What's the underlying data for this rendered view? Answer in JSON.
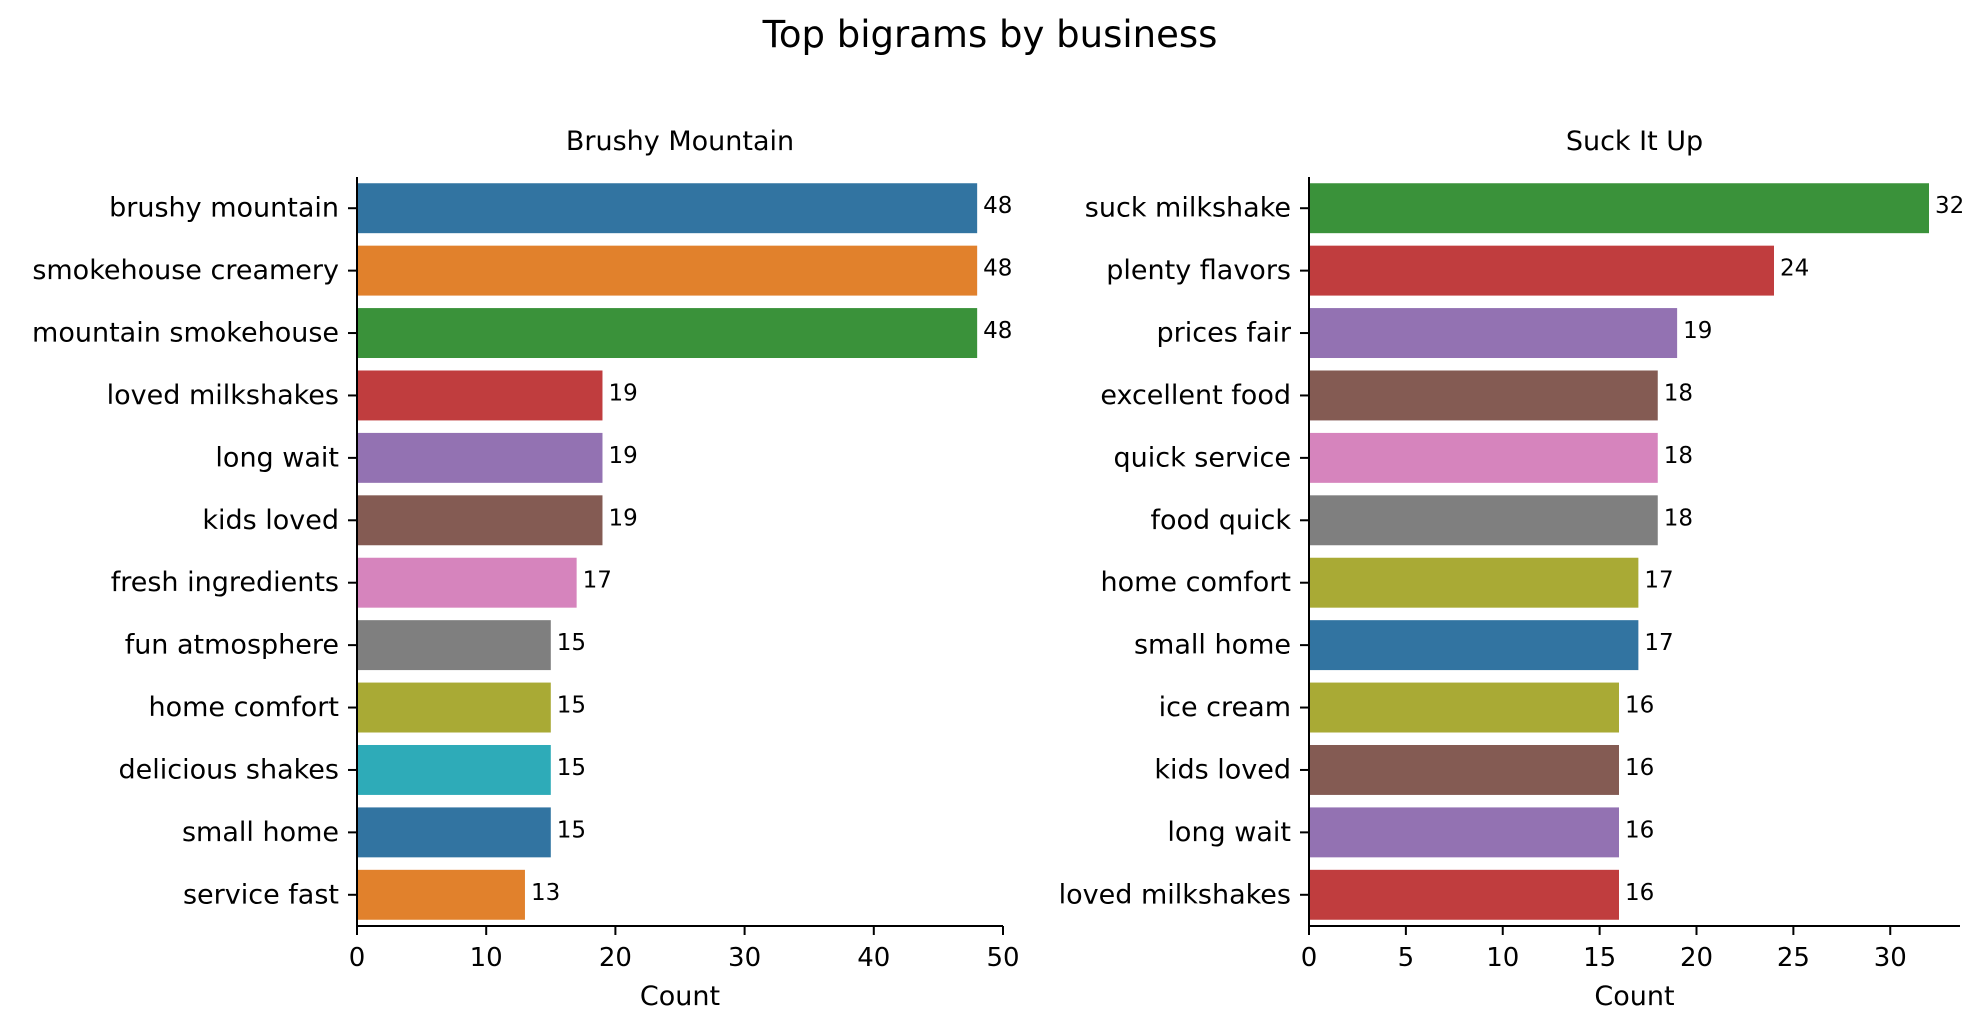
{
  "figure": {
    "title": "Top bigrams by business"
  },
  "chart_data": [
    {
      "type": "bar",
      "orientation": "horizontal",
      "title": "Brushy Mountain",
      "xlabel": "Count",
      "ylabel": "",
      "xlim": [
        0,
        50
      ],
      "xticks": [
        0,
        10,
        20,
        30,
        40,
        50
      ],
      "grid": false,
      "categories": [
        "brushy mountain",
        "smokehouse creamery",
        "mountain smokehouse",
        "loved milkshakes",
        "long wait",
        "kids loved",
        "fresh ingredients",
        "fun atmosphere",
        "home comfort",
        "delicious shakes",
        "small home",
        "service fast"
      ],
      "values": [
        48,
        48,
        48,
        19,
        19,
        19,
        17,
        15,
        15,
        15,
        15,
        13
      ],
      "colors": [
        "#3274a1",
        "#e1812c",
        "#3a923a",
        "#c03d3e",
        "#9372b2",
        "#845b53",
        "#d684bd",
        "#7f7f7f",
        "#a9aa35",
        "#2eabb8",
        "#3274a1",
        "#e1812c"
      ]
    },
    {
      "type": "bar",
      "orientation": "horizontal",
      "title": "Suck It Up",
      "xlabel": "Count",
      "ylabel": "",
      "xlim": [
        0,
        33.6
      ],
      "xticks": [
        0,
        5,
        10,
        15,
        20,
        25,
        30
      ],
      "grid": false,
      "categories": [
        "suck milkshake",
        "plenty flavors",
        "prices fair",
        "excellent food",
        "quick service",
        "food quick",
        "home comfort",
        "small home",
        "ice cream",
        "kids loved",
        "long wait",
        "loved milkshakes"
      ],
      "values": [
        32,
        24,
        19,
        18,
        18,
        18,
        17,
        17,
        16,
        16,
        16,
        16
      ],
      "colors": [
        "#3a923a",
        "#c03d3e",
        "#9372b2",
        "#845b53",
        "#d684bd",
        "#7f7f7f",
        "#a9aa35",
        "#3274a1",
        "#a9aa35",
        "#845b53",
        "#9372b2",
        "#c03d3e"
      ]
    }
  ]
}
